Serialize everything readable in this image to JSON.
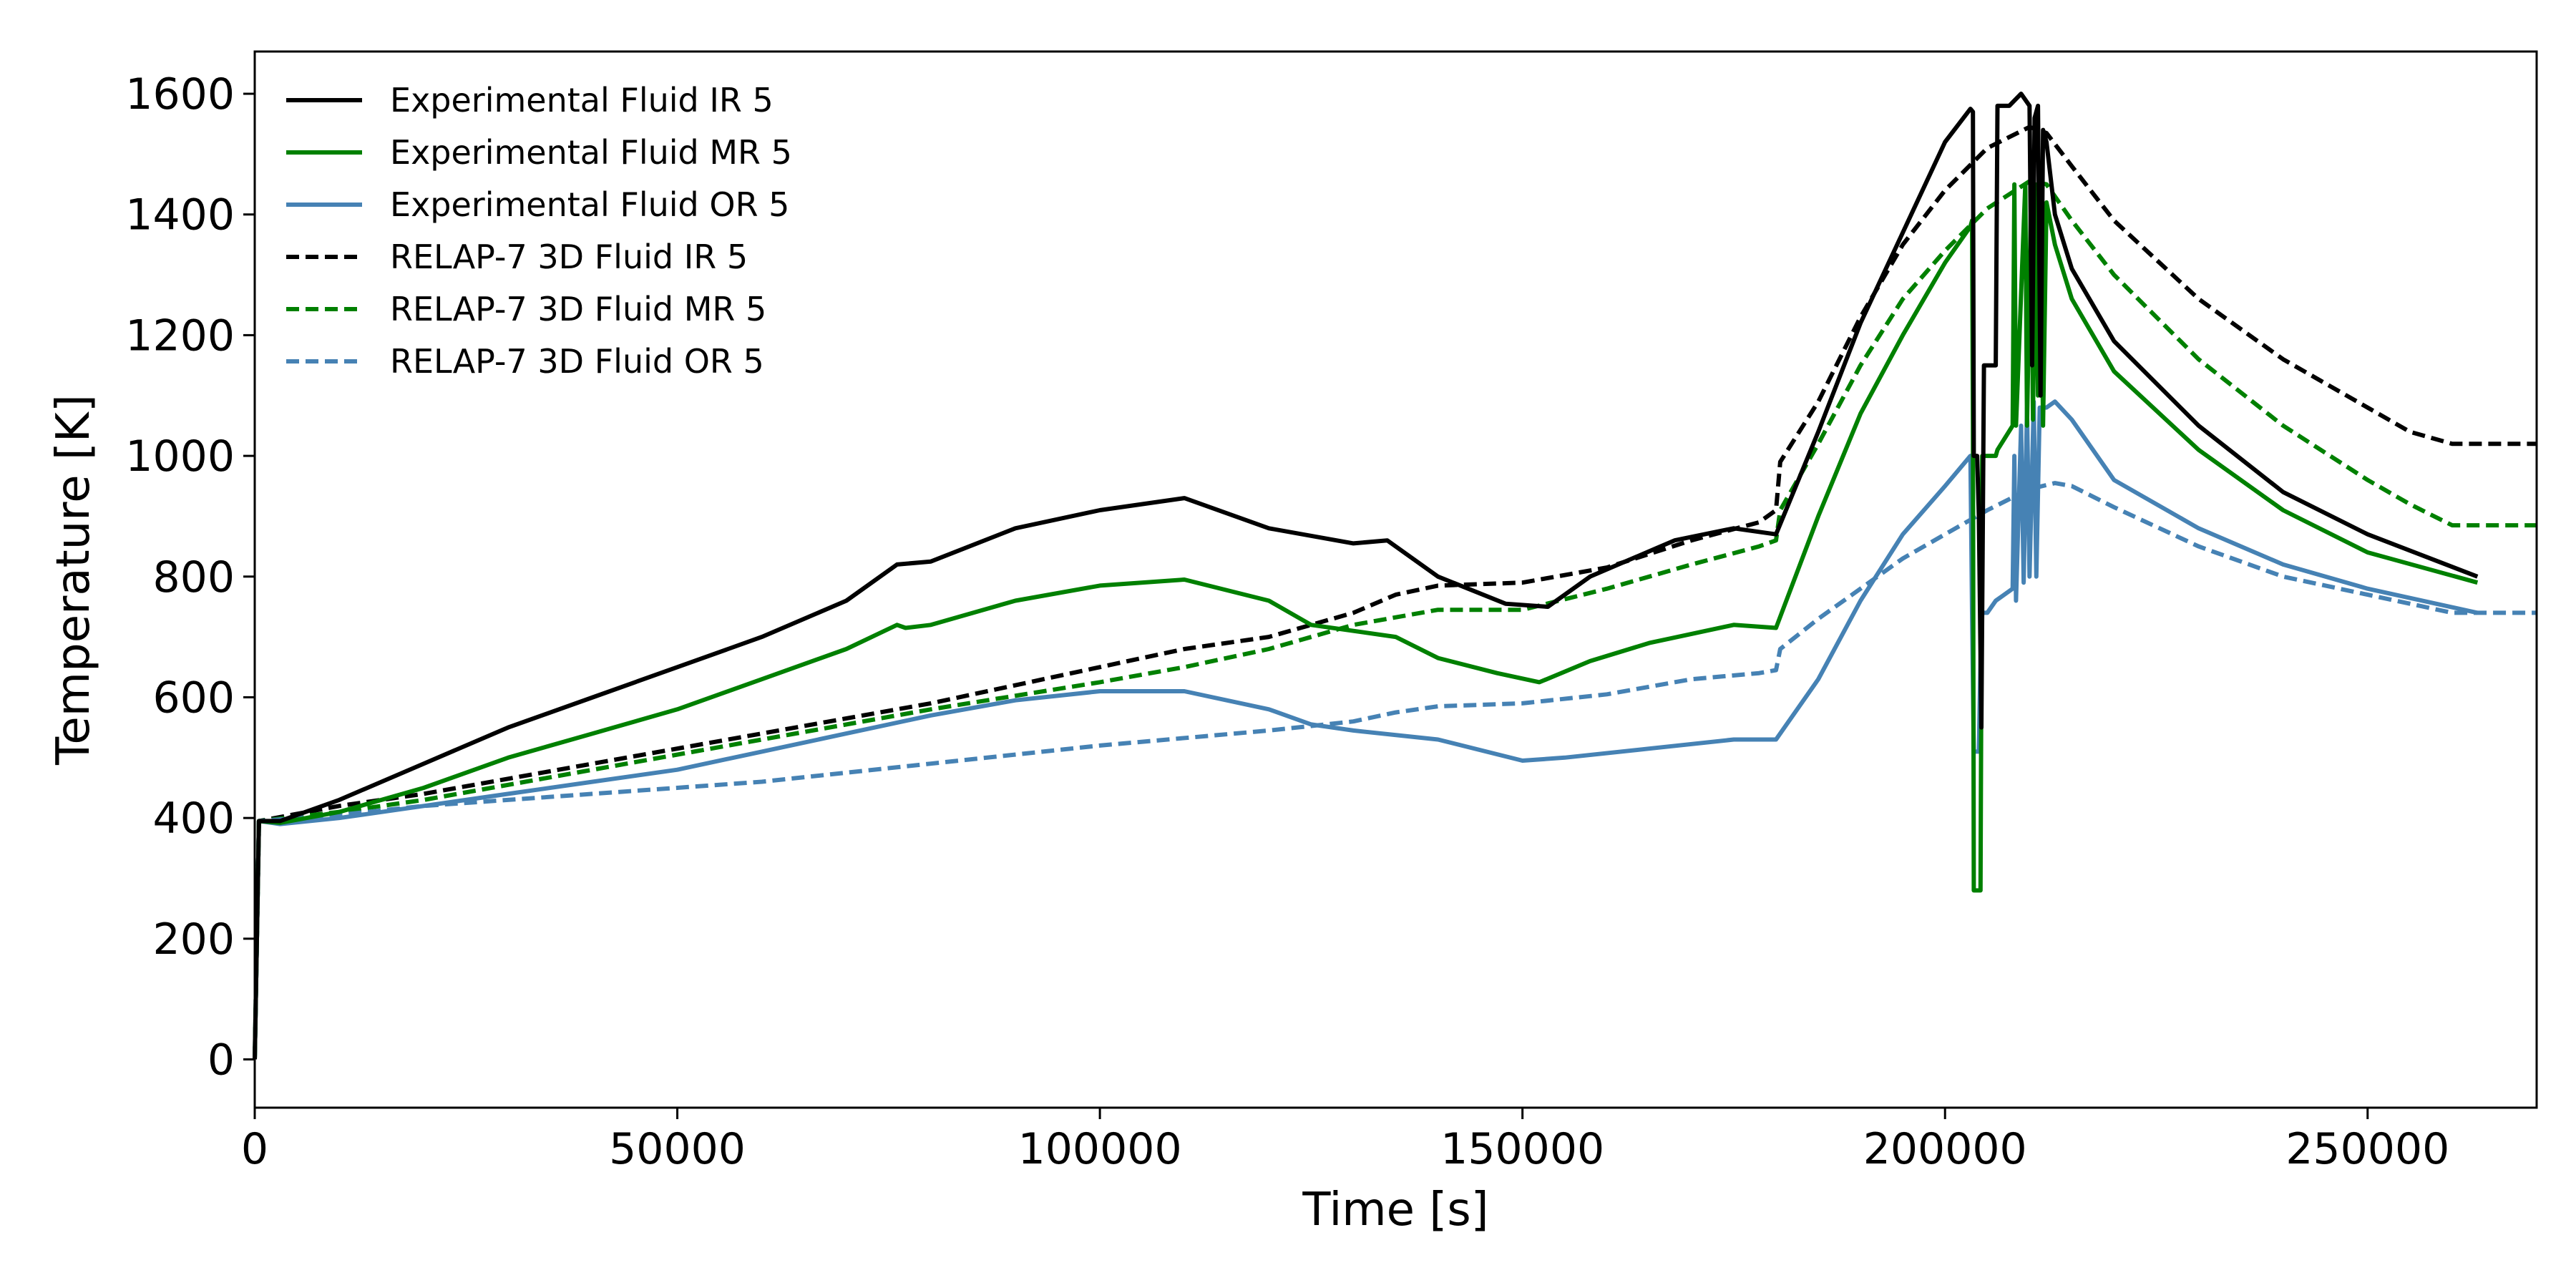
{
  "chart_data": {
    "type": "line",
    "title": "",
    "xlabel": "Time [s]",
    "ylabel": "Temperature [K]",
    "xlim": [
      0,
      270000
    ],
    "ylim": [
      -80,
      1670
    ],
    "xticks": [
      0,
      50000,
      100000,
      150000,
      200000,
      250000
    ],
    "xtick_labels": [
      "0",
      "50000",
      "100000",
      "150000",
      "200000",
      "250000"
    ],
    "yticks": [
      0,
      200,
      400,
      600,
      800,
      1000,
      1200,
      1400,
      1600
    ],
    "ytick_labels": [
      "0",
      "200",
      "400",
      "600",
      "800",
      "1000",
      "1200",
      "1400",
      "1600"
    ],
    "grid": false,
    "legend_position": "top-left",
    "series": [
      {
        "name": "Experimental Fluid IR 5",
        "color": "#000000",
        "dash": "solid",
        "points": [
          [
            0,
            0
          ],
          [
            500,
            395
          ],
          [
            3000,
            395
          ],
          [
            10000,
            430
          ],
          [
            20000,
            490
          ],
          [
            30000,
            550
          ],
          [
            40000,
            600
          ],
          [
            50000,
            650
          ],
          [
            60000,
            700
          ],
          [
            70000,
            760
          ],
          [
            76000,
            820
          ],
          [
            80000,
            825
          ],
          [
            90000,
            880
          ],
          [
            100000,
            910
          ],
          [
            110000,
            930
          ],
          [
            120000,
            880
          ],
          [
            130000,
            855
          ],
          [
            134000,
            860
          ],
          [
            140000,
            800
          ],
          [
            148000,
            755
          ],
          [
            153000,
            750
          ],
          [
            158000,
            800
          ],
          [
            168000,
            860
          ],
          [
            175000,
            880
          ],
          [
            180000,
            870
          ],
          [
            185000,
            1040
          ],
          [
            190000,
            1220
          ],
          [
            195000,
            1370
          ],
          [
            200000,
            1520
          ],
          [
            203000,
            1575
          ],
          [
            203300,
            1570
          ],
          [
            203400,
            1000
          ],
          [
            203800,
            1000
          ],
          [
            204000,
            900
          ],
          [
            204300,
            550
          ],
          [
            204600,
            1150
          ],
          [
            206000,
            1150
          ],
          [
            206200,
            1580
          ],
          [
            207500,
            1580
          ],
          [
            207600,
            1580
          ],
          [
            209000,
            1600
          ],
          [
            210000,
            1580
          ],
          [
            210300,
            1150
          ],
          [
            210600,
            1560
          ],
          [
            211000,
            1580
          ],
          [
            211300,
            1100
          ],
          [
            211600,
            1540
          ],
          [
            212000,
            1520
          ],
          [
            213000,
            1400
          ],
          [
            215000,
            1310
          ],
          [
            220000,
            1190
          ],
          [
            230000,
            1050
          ],
          [
            240000,
            940
          ],
          [
            250000,
            870
          ],
          [
            263000,
            800
          ]
        ]
      },
      {
        "name": "Experimental Fluid MR 5",
        "color": "#008000",
        "dash": "solid",
        "points": [
          [
            0,
            0
          ],
          [
            500,
            395
          ],
          [
            3000,
            392
          ],
          [
            10000,
            410
          ],
          [
            20000,
            450
          ],
          [
            30000,
            500
          ],
          [
            40000,
            540
          ],
          [
            50000,
            580
          ],
          [
            60000,
            630
          ],
          [
            70000,
            680
          ],
          [
            76000,
            720
          ],
          [
            77000,
            715
          ],
          [
            80000,
            720
          ],
          [
            90000,
            760
          ],
          [
            100000,
            785
          ],
          [
            110000,
            795
          ],
          [
            120000,
            760
          ],
          [
            125000,
            720
          ],
          [
            130000,
            710
          ],
          [
            135000,
            700
          ],
          [
            140000,
            665
          ],
          [
            147000,
            640
          ],
          [
            152000,
            625
          ],
          [
            158000,
            660
          ],
          [
            165000,
            690
          ],
          [
            175000,
            720
          ],
          [
            180000,
            715
          ],
          [
            185000,
            900
          ],
          [
            190000,
            1070
          ],
          [
            195000,
            1200
          ],
          [
            200000,
            1320
          ],
          [
            203000,
            1380
          ],
          [
            203200,
            1390
          ],
          [
            203300,
            1050
          ],
          [
            203400,
            280
          ],
          [
            204200,
            280
          ],
          [
            204400,
            1000
          ],
          [
            206000,
            1000
          ],
          [
            206200,
            1010
          ],
          [
            208000,
            1050
          ],
          [
            208200,
            1450
          ],
          [
            208400,
            1050
          ],
          [
            209500,
            1450
          ],
          [
            209700,
            1050
          ],
          [
            210200,
            1450
          ],
          [
            210400,
            1060
          ],
          [
            210700,
            1450
          ],
          [
            211000,
            1100
          ],
          [
            211300,
            1440
          ],
          [
            211600,
            1050
          ],
          [
            212000,
            1420
          ],
          [
            213000,
            1350
          ],
          [
            215000,
            1260
          ],
          [
            220000,
            1140
          ],
          [
            230000,
            1010
          ],
          [
            240000,
            910
          ],
          [
            250000,
            840
          ],
          [
            263000,
            790
          ]
        ]
      },
      {
        "name": "Experimental Fluid OR 5",
        "color": "#4682b4",
        "dash": "solid",
        "points": [
          [
            0,
            0
          ],
          [
            500,
            395
          ],
          [
            3000,
            390
          ],
          [
            10000,
            400
          ],
          [
            20000,
            420
          ],
          [
            30000,
            440
          ],
          [
            40000,
            460
          ],
          [
            50000,
            480
          ],
          [
            60000,
            510
          ],
          [
            70000,
            540
          ],
          [
            80000,
            570
          ],
          [
            90000,
            595
          ],
          [
            100000,
            610
          ],
          [
            110000,
            610
          ],
          [
            120000,
            580
          ],
          [
            125000,
            555
          ],
          [
            130000,
            545
          ],
          [
            140000,
            530
          ],
          [
            150000,
            495
          ],
          [
            155000,
            500
          ],
          [
            165000,
            515
          ],
          [
            175000,
            530
          ],
          [
            180000,
            530
          ],
          [
            185000,
            630
          ],
          [
            190000,
            760
          ],
          [
            195000,
            870
          ],
          [
            200000,
            950
          ],
          [
            203000,
            1000
          ],
          [
            203200,
            740
          ],
          [
            203400,
            510
          ],
          [
            204000,
            510
          ],
          [
            204300,
            740
          ],
          [
            205000,
            740
          ],
          [
            206000,
            760
          ],
          [
            208000,
            780
          ],
          [
            208200,
            1000
          ],
          [
            208400,
            760
          ],
          [
            209000,
            1050
          ],
          [
            209300,
            790
          ],
          [
            209700,
            1080
          ],
          [
            210000,
            800
          ],
          [
            210500,
            1090
          ],
          [
            210800,
            800
          ],
          [
            211200,
            1080
          ],
          [
            212000,
            1080
          ],
          [
            213000,
            1090
          ],
          [
            215000,
            1060
          ],
          [
            220000,
            960
          ],
          [
            230000,
            880
          ],
          [
            240000,
            820
          ],
          [
            250000,
            780
          ],
          [
            263000,
            740
          ]
        ]
      },
      {
        "name": "RELAP-7 3D Fluid IR 5",
        "color": "#000000",
        "dash": "dashed",
        "points": [
          [
            0,
            0
          ],
          [
            500,
            395
          ],
          [
            10000,
            420
          ],
          [
            20000,
            440
          ],
          [
            40000,
            490
          ],
          [
            60000,
            540
          ],
          [
            80000,
            590
          ],
          [
            100000,
            650
          ],
          [
            110000,
            680
          ],
          [
            120000,
            700
          ],
          [
            130000,
            740
          ],
          [
            135000,
            770
          ],
          [
            140000,
            785
          ],
          [
            150000,
            790
          ],
          [
            160000,
            815
          ],
          [
            170000,
            860
          ],
          [
            178000,
            890
          ],
          [
            180000,
            910
          ],
          [
            180500,
            990
          ],
          [
            185000,
            1090
          ],
          [
            190000,
            1230
          ],
          [
            195000,
            1350
          ],
          [
            200000,
            1440
          ],
          [
            205000,
            1510
          ],
          [
            210000,
            1545
          ],
          [
            212000,
            1535
          ],
          [
            215000,
            1480
          ],
          [
            220000,
            1390
          ],
          [
            230000,
            1260
          ],
          [
            240000,
            1160
          ],
          [
            250000,
            1080
          ],
          [
            255000,
            1040
          ],
          [
            260000,
            1020
          ],
          [
            270000,
            1020
          ]
        ]
      },
      {
        "name": "RELAP-7 3D Fluid MR 5",
        "color": "#008000",
        "dash": "dashed",
        "points": [
          [
            0,
            0
          ],
          [
            500,
            395
          ],
          [
            10000,
            410
          ],
          [
            20000,
            430
          ],
          [
            40000,
            480
          ],
          [
            60000,
            530
          ],
          [
            80000,
            580
          ],
          [
            100000,
            625
          ],
          [
            110000,
            650
          ],
          [
            120000,
            680
          ],
          [
            130000,
            720
          ],
          [
            140000,
            745
          ],
          [
            150000,
            745
          ],
          [
            160000,
            780
          ],
          [
            170000,
            820
          ],
          [
            178000,
            850
          ],
          [
            180000,
            860
          ],
          [
            180500,
            910
          ],
          [
            185000,
            1020
          ],
          [
            190000,
            1150
          ],
          [
            195000,
            1260
          ],
          [
            200000,
            1340
          ],
          [
            205000,
            1410
          ],
          [
            210000,
            1455
          ],
          [
            212000,
            1450
          ],
          [
            215000,
            1390
          ],
          [
            220000,
            1300
          ],
          [
            230000,
            1160
          ],
          [
            240000,
            1050
          ],
          [
            250000,
            960
          ],
          [
            255000,
            920
          ],
          [
            260000,
            885
          ],
          [
            270000,
            885
          ]
        ]
      },
      {
        "name": "RELAP-7 3D Fluid OR 5",
        "color": "#4682b4",
        "dash": "dashed",
        "points": [
          [
            0,
            0
          ],
          [
            500,
            395
          ],
          [
            10000,
            405
          ],
          [
            20000,
            420
          ],
          [
            40000,
            440
          ],
          [
            60000,
            460
          ],
          [
            80000,
            490
          ],
          [
            100000,
            520
          ],
          [
            120000,
            545
          ],
          [
            130000,
            560
          ],
          [
            135000,
            575
          ],
          [
            140000,
            585
          ],
          [
            150000,
            590
          ],
          [
            160000,
            605
          ],
          [
            170000,
            630
          ],
          [
            178000,
            640
          ],
          [
            180000,
            645
          ],
          [
            180500,
            680
          ],
          [
            185000,
            730
          ],
          [
            190000,
            780
          ],
          [
            195000,
            830
          ],
          [
            200000,
            870
          ],
          [
            205000,
            910
          ],
          [
            210000,
            945
          ],
          [
            213000,
            955
          ],
          [
            215000,
            950
          ],
          [
            220000,
            915
          ],
          [
            230000,
            850
          ],
          [
            240000,
            800
          ],
          [
            250000,
            770
          ],
          [
            255000,
            755
          ],
          [
            260000,
            740
          ],
          [
            270000,
            740
          ]
        ]
      }
    ]
  }
}
